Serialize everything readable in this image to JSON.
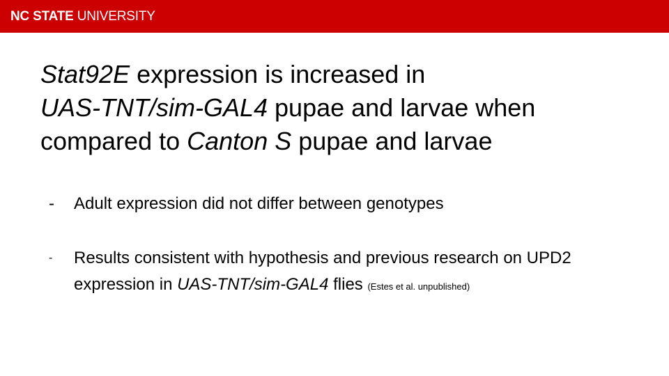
{
  "header": {
    "logo_bold": "NC STATE",
    "logo_regular": "UNIVERSITY",
    "background_color": "#cc0000"
  },
  "slide": {
    "title": {
      "line1_italic": "Stat92E",
      "line1_rest": " expression is increased in",
      "line2_italic": "UAS-TNT/sim-GAL4",
      "line2_rest": " pupae and larvae when",
      "line3_start": "compared to ",
      "line3_italic": "Canton S",
      "line3_rest": " pupae and larvae"
    },
    "bullets": [
      {
        "marker": "-",
        "text": "Adult expression did not differ between genotypes"
      },
      {
        "marker": "-",
        "text_start": "Results consistent with hypothesis and previous research on UPD2 expression in ",
        "text_italic": "UAS-TNT/sim-GAL4",
        "text_end": " flies ",
        "citation": "(Estes et al. unpublished)"
      }
    ]
  }
}
